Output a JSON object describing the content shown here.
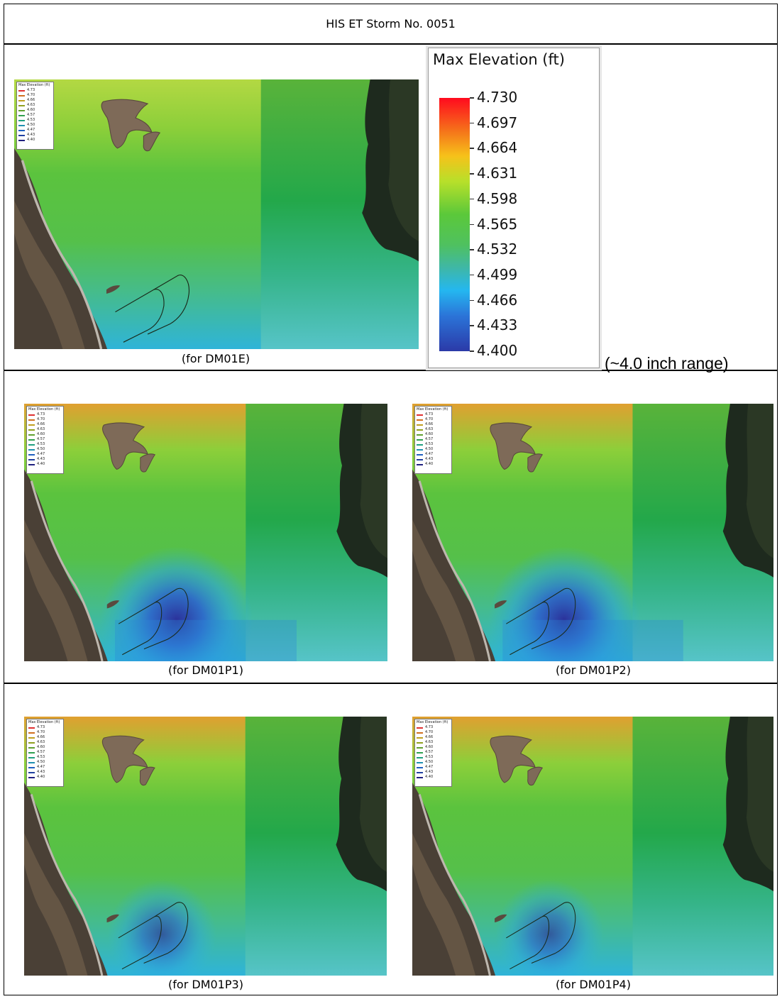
{
  "title": "HIS ET Storm  No. 0051",
  "legend": {
    "title": "Max Elevation (ft)",
    "values": [
      "4.730",
      "4.697",
      "4.664",
      "4.631",
      "4.598",
      "4.565",
      "4.532",
      "4.499",
      "4.466",
      "4.433",
      "4.400"
    ],
    "colors": [
      "#ff0a1e",
      "#f5731a",
      "#f6c21a",
      "#b7e02a",
      "#5bc83a",
      "#4fc15f",
      "#3fb7a6",
      "#24b7f0",
      "#2b74d8",
      "#2b50c0",
      "#2b3aa8"
    ]
  },
  "range_note": "(~4.0 inch range)",
  "mini_legend": {
    "title": "Max Elevation (ft)",
    "values": [
      "4.73",
      "4.70",
      "4.66",
      "4.63",
      "4.60",
      "4.57",
      "4.53",
      "4.50",
      "4.47",
      "4.43",
      "4.40"
    ],
    "colors": [
      "#e03030",
      "#d07020",
      "#c0a020",
      "#90a020",
      "#60a030",
      "#30a050",
      "#20a080",
      "#2090b0",
      "#2060c0",
      "#2040a0",
      "#202080"
    ]
  },
  "panels": [
    {
      "caption": "(for DM01E)",
      "variant": "existing"
    },
    {
      "caption": "(for DM01P1)",
      "variant": "strong"
    },
    {
      "caption": "(for DM01P2)",
      "variant": "strong"
    },
    {
      "caption": "(for DM01P3)",
      "variant": "moderate"
    },
    {
      "caption": "(for DM01P4)",
      "variant": "moderate"
    }
  ]
}
